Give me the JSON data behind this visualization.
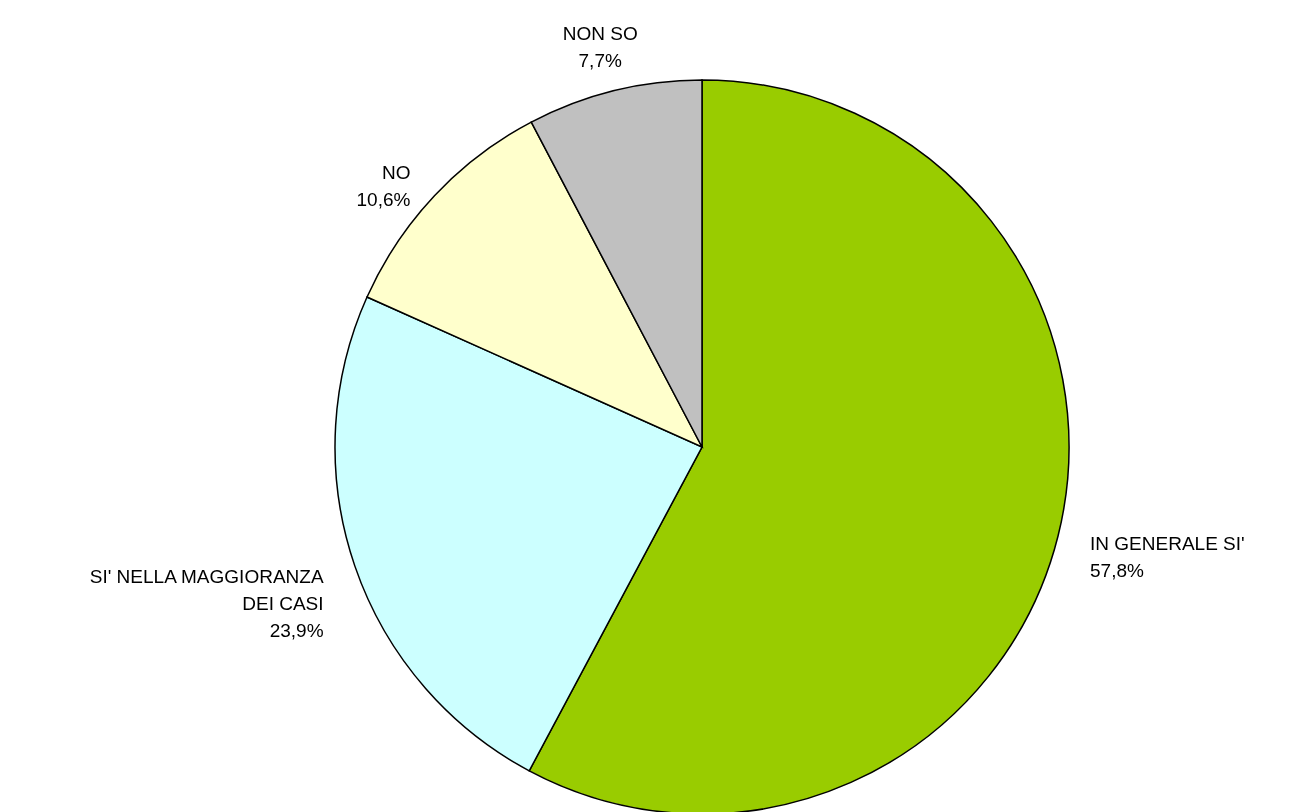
{
  "chart_data": {
    "type": "pie",
    "categories": [
      "IN GENERALE SI'",
      "SI' NELLA MAGGIORANZA DEI CASI",
      "NO",
      "NON SO"
    ],
    "values": [
      57.8,
      23.9,
      10.6,
      7.7
    ],
    "value_labels": [
      "57,8%",
      "23,9%",
      "10,6%",
      "7,7%"
    ],
    "colors": [
      "#99cc00",
      "#ccffff",
      "#ffffcc",
      "#c0c0c0"
    ]
  }
}
